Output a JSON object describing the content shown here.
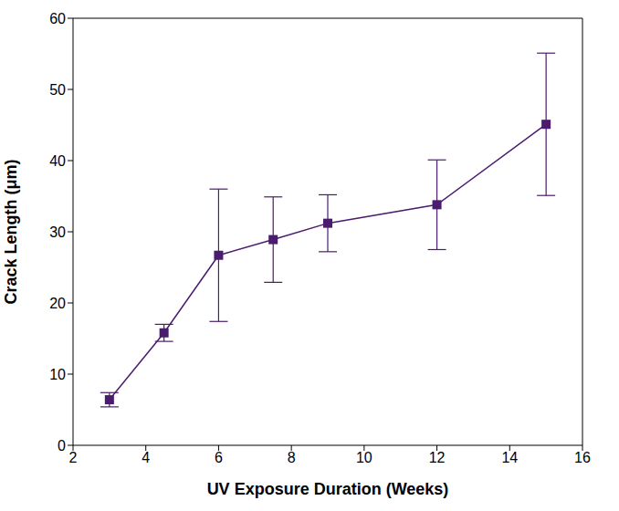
{
  "chart_data": {
    "type": "line",
    "x_label": "UV  Exposure Duration (Weeks)",
    "y_label": "Crack Length (μm)",
    "x": [
      3,
      4.5,
      6,
      7.5,
      9,
      12,
      15
    ],
    "values": [
      6.4,
      15.8,
      26.7,
      28.9,
      31.2,
      33.8,
      45.1
    ],
    "errors": [
      1.0,
      1.2,
      9.3,
      6.0,
      4.0,
      6.3,
      10.0
    ],
    "color": "#4b1c6e",
    "marker": "square",
    "line_style": "solid",
    "xlim": [
      2,
      16
    ],
    "xticks": [
      2,
      4,
      6,
      8,
      10,
      12,
      14,
      16
    ],
    "ylim": [
      0,
      60
    ],
    "yticks": [
      0,
      10,
      20,
      30,
      40,
      50,
      60
    ],
    "grid": false
  }
}
